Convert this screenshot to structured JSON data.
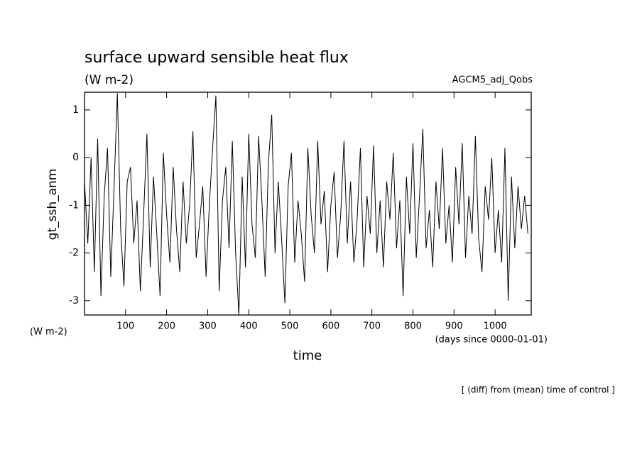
{
  "chart_data": {
    "type": "line",
    "title": "surface upward sensible heat flux",
    "subtitle": "(W m-2)",
    "annotation_right": "AGCM5_adj_Qobs",
    "ylabel": "gt_ssh_anm",
    "yunits": "(W m-2)",
    "xunits": "(days since 0000-01-01)",
    "xlabel": "time",
    "footnote": "[ (diff) from (mean) time of control ]",
    "xlim": [
      0,
      1088
    ],
    "ylim": [
      -3.3,
      1.37
    ],
    "xticks": [
      100,
      200,
      300,
      400,
      500,
      600,
      700,
      800,
      900,
      1000
    ],
    "yticks": [
      -3,
      -2,
      -1,
      0,
      1
    ],
    "x": [
      0,
      8,
      16,
      24,
      32,
      40,
      48,
      56,
      64,
      72,
      80,
      88,
      96,
      104,
      112,
      120,
      128,
      136,
      144,
      152,
      160,
      168,
      176,
      184,
      192,
      200,
      208,
      216,
      224,
      232,
      240,
      248,
      256,
      264,
      272,
      280,
      288,
      296,
      304,
      312,
      320,
      328,
      336,
      344,
      352,
      360,
      368,
      376,
      384,
      392,
      400,
      408,
      416,
      424,
      432,
      440,
      448,
      456,
      464,
      472,
      480,
      488,
      496,
      504,
      512,
      520,
      528,
      536,
      544,
      552,
      560,
      568,
      576,
      584,
      592,
      600,
      608,
      616,
      624,
      632,
      640,
      648,
      656,
      664,
      672,
      680,
      688,
      696,
      704,
      712,
      720,
      728,
      736,
      744,
      752,
      760,
      768,
      776,
      784,
      792,
      800,
      808,
      816,
      824,
      832,
      840,
      848,
      856,
      864,
      872,
      880,
      888,
      896,
      904,
      912,
      920,
      928,
      936,
      944,
      952,
      960,
      968,
      976,
      984,
      992,
      1000,
      1008,
      1016,
      1024,
      1032,
      1040,
      1048,
      1056,
      1064,
      1072,
      1080
    ],
    "series": [
      {
        "color": "#000000",
        "values": [
          -0.5,
          -1.8,
          0.0,
          -2.4,
          0.4,
          -2.9,
          -0.8,
          0.2,
          -2.5,
          -0.6,
          1.35,
          -1.5,
          -2.7,
          -0.5,
          -0.2,
          -1.8,
          -0.9,
          -2.8,
          -1.2,
          0.5,
          -2.3,
          -0.4,
          -1.6,
          -2.9,
          0.1,
          -1.2,
          -2.2,
          -0.2,
          -1.5,
          -2.4,
          -0.5,
          -1.8,
          -1.0,
          0.55,
          -2.1,
          -1.4,
          -0.6,
          -2.5,
          -1.0,
          0.2,
          1.3,
          -2.8,
          -0.9,
          -0.2,
          -1.9,
          0.35,
          -2.0,
          -3.3,
          -0.4,
          -2.3,
          0.5,
          -1.4,
          -2.1,
          0.45,
          -0.9,
          -2.5,
          -0.1,
          0.9,
          -2.0,
          -0.5,
          -1.7,
          -3.05,
          -0.6,
          0.1,
          -2.2,
          -0.9,
          -1.6,
          -2.6,
          0.2,
          -1.2,
          -2.0,
          0.35,
          -1.4,
          -0.7,
          -2.4,
          -1.0,
          -0.3,
          -2.1,
          -1.2,
          0.35,
          -1.8,
          -0.5,
          -2.2,
          -1.3,
          0.2,
          -2.3,
          -0.8,
          -1.6,
          0.25,
          -2.0,
          -0.9,
          -2.3,
          -0.5,
          -1.3,
          0.1,
          -1.9,
          -0.9,
          -2.9,
          -0.4,
          -1.6,
          0.3,
          -2.1,
          -0.8,
          0.6,
          -1.9,
          -1.1,
          -2.3,
          -0.5,
          -1.5,
          0.2,
          -1.8,
          -1.0,
          -2.2,
          -0.2,
          -1.4,
          0.3,
          -2.1,
          -0.8,
          -1.6,
          0.45,
          -1.7,
          -2.4,
          -0.6,
          -1.3,
          0.0,
          -2.0,
          -1.1,
          -2.2,
          0.2,
          -3.0,
          -0.4,
          -1.9,
          -0.6,
          -1.5,
          -0.8,
          -1.6
        ]
      }
    ]
  }
}
